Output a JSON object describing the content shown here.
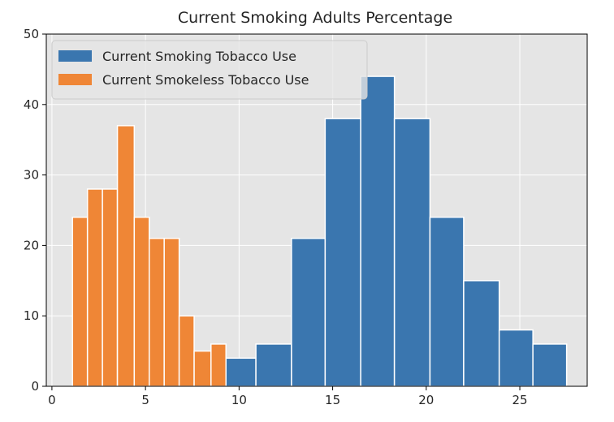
{
  "chart_data": {
    "type": "bar",
    "title": "Current Smoking Adults Percentage",
    "xlabel": "",
    "ylabel": "",
    "xlim": [
      -0.3,
      28.6
    ],
    "ylim": [
      0,
      50
    ],
    "xticks": [
      0,
      5,
      10,
      15,
      20,
      25
    ],
    "yticks": [
      0,
      10,
      20,
      30,
      40,
      50
    ],
    "grid": true,
    "legend_position": "top-left",
    "series": [
      {
        "name": "Current Smoking Tobacco Use",
        "color": "#3a76af",
        "bins": [
          {
            "x0": 9.3,
            "x1": 10.9,
            "count": 4
          },
          {
            "x0": 10.9,
            "x1": 12.8,
            "count": 6
          },
          {
            "x0": 12.8,
            "x1": 14.6,
            "count": 21
          },
          {
            "x0": 14.6,
            "x1": 16.5,
            "count": 38
          },
          {
            "x0": 16.5,
            "x1": 18.3,
            "count": 44
          },
          {
            "x0": 18.3,
            "x1": 20.2,
            "count": 38
          },
          {
            "x0": 20.2,
            "x1": 22.0,
            "count": 24
          },
          {
            "x0": 22.0,
            "x1": 23.9,
            "count": 15
          },
          {
            "x0": 23.9,
            "x1": 25.7,
            "count": 8
          },
          {
            "x0": 25.7,
            "x1": 27.5,
            "count": 6
          }
        ]
      },
      {
        "name": "Current Smokeless Tobacco Use",
        "color": "#ef8636",
        "bins": [
          {
            "x0": 1.1,
            "x1": 1.9,
            "count": 24
          },
          {
            "x0": 1.9,
            "x1": 2.7,
            "count": 28
          },
          {
            "x0": 2.7,
            "x1": 3.5,
            "count": 28
          },
          {
            "x0": 3.5,
            "x1": 4.4,
            "count": 37
          },
          {
            "x0": 4.4,
            "x1": 5.2,
            "count": 24
          },
          {
            "x0": 5.2,
            "x1": 6.0,
            "count": 21
          },
          {
            "x0": 6.0,
            "x1": 6.8,
            "count": 21
          },
          {
            "x0": 6.8,
            "x1": 7.6,
            "count": 10
          },
          {
            "x0": 7.6,
            "x1": 8.5,
            "count": 5
          },
          {
            "x0": 8.5,
            "x1": 9.3,
            "count": 6
          }
        ]
      }
    ]
  }
}
